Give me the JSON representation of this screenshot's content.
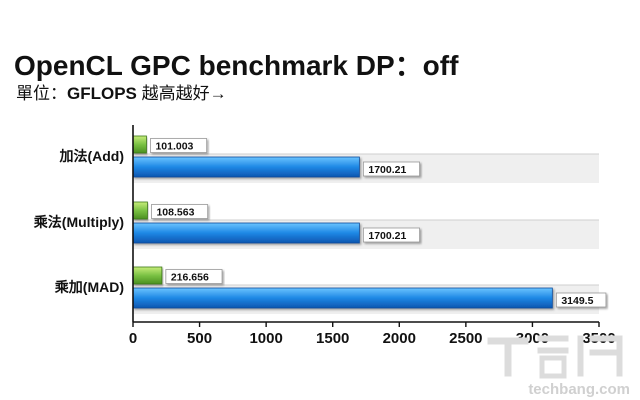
{
  "title": "OpenCL GPC benchmark DP：off",
  "subtitle": {
    "prefix": "單位：",
    "unit": "GFLOPS",
    "note": " 越高越好→"
  },
  "chart_data": {
    "type": "bar",
    "orientation": "horizontal",
    "categories": [
      "加法(Add)",
      "乘法(Multiply)",
      "乘加(MAD)"
    ],
    "series": [
      {
        "values": [
          101.003,
          108.563,
          216.656
        ],
        "labels": [
          "101.003",
          "108.563",
          "216.656"
        ],
        "color": "#7ac143"
      },
      {
        "values": [
          1700.21,
          1700.21,
          3149.5
        ],
        "labels": [
          "1700.21",
          "1700.21",
          "3149.5"
        ],
        "color": "#1e88e5"
      }
    ],
    "x_ticks": [
      "0",
      "500",
      "1000",
      "1500",
      "2000",
      "2500",
      "3000",
      "3500"
    ],
    "xlim": [
      0,
      3500
    ],
    "grid": false
  },
  "watermark": {
    "text": "techbang.com"
  }
}
